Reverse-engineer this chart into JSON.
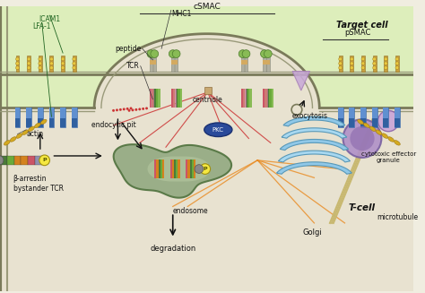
{
  "bg_color": "#f0ede0",
  "target_cell_color": "#ddeebb",
  "tcell_color": "#e8e2d0",
  "labels": {
    "target_cell": "Target cell",
    "psmac": "pSMAC",
    "csmac": "cSMAC",
    "tcell": "T-cell",
    "icam1": "ICAM1",
    "lfa1": "LFA-1",
    "mhc1": "MHC1",
    "peptide": "peptide",
    "tcr": "TCR",
    "centriole": "centriole",
    "pkc": "PKC",
    "exocytosis": "exocytosis",
    "actin": "actin",
    "endocytic_pit": "endocytic pit",
    "beta_arrestin": "β-arrestin",
    "bystander_tcr": "bystander TCR",
    "endosome": "endosome",
    "degradation": "degradation",
    "golgi": "Golgi",
    "microtubule": "microtubule",
    "cytotoxic": "cytotoxic effector\ngranule"
  },
  "colors": {
    "green_dark": "#3a6e2a",
    "green_mid": "#6aaa3a",
    "orange_recep": "#d4821e",
    "tan_recep": "#c8aa70",
    "gray_recep": "#a8a898",
    "blue_lfa": "#4a6fa5",
    "blue_lfa2": "#6a9fd5",
    "teal": "#3a8a7a",
    "pink_tcr": "#cc6688",
    "red_lines": "#cc3333",
    "orange_lines": "#e88a20",
    "pkc_blue": "#2a4a9a",
    "granule_purple": "#b090c8",
    "granule_purple2": "#8060a0",
    "golgi_blue": "#90c0e0",
    "golgi_blue2": "#b0d8f0",
    "endosome_green": "#8aaa78",
    "endosome_edge": "#4a6a3a",
    "yellow_dots": "#d4aa20",
    "arrow_dark": "#222222"
  }
}
